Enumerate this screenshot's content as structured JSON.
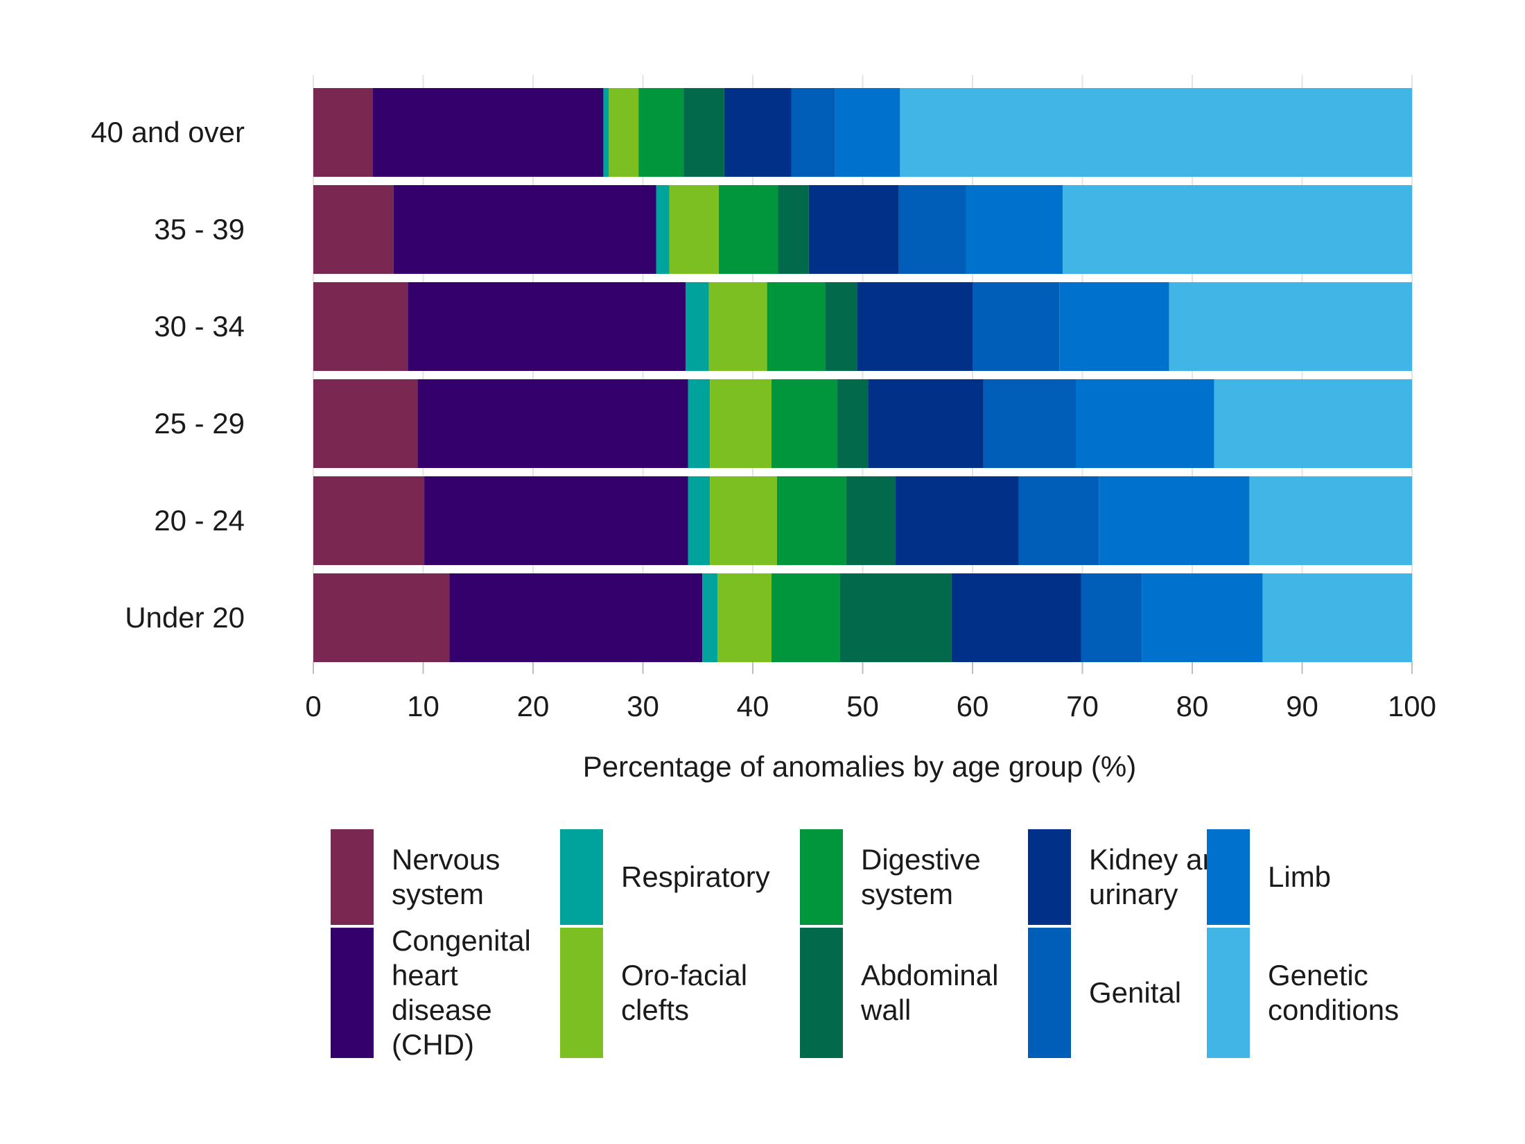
{
  "chart_data": {
    "type": "bar",
    "orientation": "horizontal",
    "stacked": true,
    "title": "",
    "xlabel": "Percentage of anomalies by age group (%)",
    "ylabel": "",
    "xlim": [
      0,
      100
    ],
    "xticks": [
      0,
      10,
      20,
      30,
      40,
      50,
      60,
      70,
      80,
      90,
      100
    ],
    "grid": "vertical",
    "legend_position": "bottom",
    "categories": [
      "40 and over",
      "35 - 39",
      "30 - 34",
      "25 - 29",
      "20 - 24",
      "Under 20"
    ],
    "series": [
      {
        "name": "Nervous system",
        "color": "#7a2852",
        "values": [
          5.4,
          7.3,
          8.6,
          9.5,
          10.1,
          12.4
        ]
      },
      {
        "name": "Congenital heart disease (CHD)",
        "color": "#34006c",
        "values": [
          21.0,
          23.9,
          25.3,
          24.6,
          24.0,
          23.0
        ]
      },
      {
        "name": "Respiratory",
        "color": "#00a39b",
        "values": [
          0.5,
          1.2,
          2.1,
          2.0,
          2.0,
          1.4
        ]
      },
      {
        "name": "Oro-facial clefts",
        "color": "#7cbf20",
        "values": [
          2.7,
          4.5,
          5.3,
          5.6,
          6.1,
          4.9
        ]
      },
      {
        "name": "Digestive system",
        "color": "#00963c",
        "values": [
          4.1,
          5.4,
          5.3,
          6.0,
          6.3,
          6.2
        ]
      },
      {
        "name": "Abdominal wall",
        "color": "#006a4a",
        "values": [
          3.7,
          2.8,
          2.9,
          2.8,
          4.5,
          10.2
        ]
      },
      {
        "name": "Kidney and urinary",
        "color": "#003088",
        "values": [
          6.1,
          8.2,
          10.5,
          10.5,
          11.2,
          11.8
        ]
      },
      {
        "name": "Genital",
        "color": "#005eb8",
        "values": [
          4.0,
          6.1,
          7.9,
          8.4,
          7.3,
          5.5
        ]
      },
      {
        "name": "Limb",
        "color": "#0072ce",
        "values": [
          5.9,
          8.8,
          10.0,
          12.6,
          13.7,
          11.0
        ]
      },
      {
        "name": "Genetic conditions",
        "color": "#41b6e6",
        "values": [
          46.6,
          31.8,
          22.1,
          18.0,
          14.8,
          13.6
        ]
      }
    ]
  }
}
